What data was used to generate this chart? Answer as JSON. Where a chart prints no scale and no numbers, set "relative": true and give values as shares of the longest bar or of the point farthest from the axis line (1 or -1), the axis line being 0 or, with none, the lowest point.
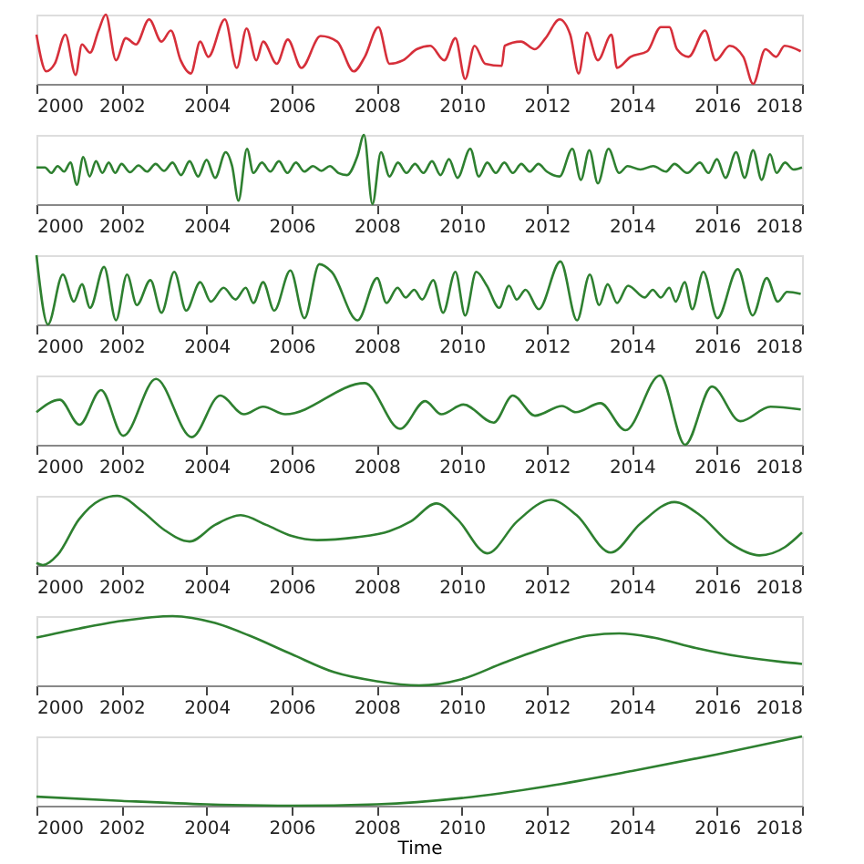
{
  "chart_data": [
    {
      "type": "line",
      "relative": true,
      "xlim": [
        2000,
        2018
      ],
      "xticks": [
        2000,
        2002,
        2004,
        2006,
        2008,
        2010,
        2012,
        2014,
        2016,
        2018
      ],
      "x": [
        2000.0,
        2000.23,
        2000.43,
        2000.68,
        2000.92,
        2001.07,
        2001.26,
        2001.46,
        2001.63,
        2001.87,
        2002.1,
        2002.34,
        2002.65,
        2002.94,
        2003.16,
        2003.39,
        2003.63,
        2003.85,
        2004.04,
        2004.43,
        2004.71,
        2004.94,
        2005.17,
        2005.33,
        2005.65,
        2005.91,
        2006.23,
        2006.68,
        2007.07,
        2007.46,
        2007.72,
        2008.04,
        2008.3,
        2008.62,
        2008.94,
        2009.26,
        2009.59,
        2009.85,
        2010.08,
        2010.3,
        2010.55,
        2010.94,
        2011.01,
        2011.39,
        2011.72,
        2011.97,
        2012.3,
        2012.55,
        2012.75,
        2012.94,
        2013.2,
        2013.52,
        2013.65,
        2013.97,
        2014.36,
        2014.68,
        2014.88,
        2015.06,
        2015.33,
        2015.72,
        2015.97,
        2016.3,
        2016.62,
        2016.85,
        2017.14,
        2017.39,
        2017.59,
        2017.97
      ],
      "series": [
        {
          "color": "#d62f3a",
          "values": [
            0.71,
            0.18,
            0.29,
            0.71,
            0.13,
            0.57,
            0.45,
            0.77,
            1.0,
            0.34,
            0.66,
            0.57,
            0.93,
            0.61,
            0.77,
            0.34,
            0.15,
            0.61,
            0.39,
            0.93,
            0.23,
            0.8,
            0.34,
            0.61,
            0.29,
            0.64,
            0.23,
            0.69,
            0.61,
            0.18,
            0.39,
            0.82,
            0.29,
            0.34,
            0.5,
            0.55,
            0.34,
            0.66,
            0.07,
            0.55,
            0.29,
            0.26,
            0.55,
            0.61,
            0.5,
            0.66,
            0.93,
            0.71,
            0.15,
            0.74,
            0.34,
            0.71,
            0.23,
            0.39,
            0.47,
            0.82,
            0.82,
            0.5,
            0.39,
            0.77,
            0.34,
            0.55,
            0.39,
            0.0,
            0.5,
            0.39,
            0.55,
            0.47
          ]
        }
      ]
    },
    {
      "type": "line",
      "relative": true,
      "xlim": [
        2000,
        2018
      ],
      "xticks": [
        2000,
        2002,
        2004,
        2006,
        2008,
        2010,
        2012,
        2014,
        2016,
        2018
      ],
      "x": [
        2000.0,
        2000.2,
        2000.35,
        2000.5,
        2000.65,
        2000.8,
        2000.95,
        2001.1,
        2001.25,
        2001.4,
        2001.55,
        2001.7,
        2001.85,
        2002.0,
        2002.2,
        2002.4,
        2002.6,
        2002.8,
        2003.0,
        2003.2,
        2003.4,
        2003.6,
        2003.8,
        2004.0,
        2004.2,
        2004.45,
        2004.6,
        2004.75,
        2004.95,
        2005.1,
        2005.3,
        2005.5,
        2005.7,
        2005.9,
        2006.1,
        2006.3,
        2006.5,
        2006.7,
        2006.9,
        2007.1,
        2007.3,
        2007.55,
        2007.7,
        2007.9,
        2008.1,
        2008.3,
        2008.5,
        2008.7,
        2008.9,
        2009.1,
        2009.3,
        2009.5,
        2009.7,
        2009.9,
        2010.2,
        2010.4,
        2010.6,
        2010.8,
        2011.0,
        2011.2,
        2011.4,
        2011.6,
        2011.8,
        2012.0,
        2012.3,
        2012.6,
        2012.8,
        2013.0,
        2013.2,
        2013.45,
        2013.7,
        2013.9,
        2014.2,
        2014.5,
        2014.8,
        2015.0,
        2015.3,
        2015.6,
        2015.8,
        2016.0,
        2016.2,
        2016.45,
        2016.65,
        2016.85,
        2017.05,
        2017.25,
        2017.4,
        2017.6,
        2017.8,
        2018.0
      ],
      "series": [
        {
          "color": "#2e8030",
          "values": [
            0.53,
            0.53,
            0.45,
            0.55,
            0.47,
            0.6,
            0.28,
            0.68,
            0.4,
            0.62,
            0.45,
            0.6,
            0.45,
            0.58,
            0.46,
            0.56,
            0.47,
            0.58,
            0.48,
            0.6,
            0.42,
            0.62,
            0.4,
            0.64,
            0.38,
            0.75,
            0.55,
            0.05,
            0.8,
            0.45,
            0.6,
            0.47,
            0.62,
            0.45,
            0.6,
            0.47,
            0.55,
            0.48,
            0.55,
            0.45,
            0.42,
            0.7,
            1.0,
            0.0,
            0.75,
            0.4,
            0.6,
            0.45,
            0.58,
            0.45,
            0.62,
            0.42,
            0.65,
            0.38,
            0.8,
            0.4,
            0.6,
            0.45,
            0.6,
            0.45,
            0.58,
            0.47,
            0.58,
            0.47,
            0.4,
            0.8,
            0.35,
            0.78,
            0.3,
            0.8,
            0.45,
            0.55,
            0.5,
            0.55,
            0.47,
            0.58,
            0.45,
            0.6,
            0.45,
            0.65,
            0.38,
            0.75,
            0.38,
            0.78,
            0.35,
            0.72,
            0.45,
            0.6,
            0.5,
            0.53
          ]
        }
      ]
    },
    {
      "type": "line",
      "relative": true,
      "xlim": [
        2000,
        2018
      ],
      "xticks": [
        2000,
        2002,
        2004,
        2006,
        2008,
        2010,
        2012,
        2014,
        2016,
        2018
      ],
      "x": [
        2000.0,
        2000.27,
        2000.62,
        2000.88,
        2001.07,
        2001.26,
        2001.59,
        2001.87,
        2002.13,
        2002.36,
        2002.68,
        2002.94,
        2003.24,
        2003.52,
        2003.85,
        2004.1,
        2004.4,
        2004.68,
        2004.92,
        2005.1,
        2005.33,
        2005.59,
        2005.97,
        2006.3,
        2006.65,
        2006.94,
        2007.55,
        2008.01,
        2008.23,
        2008.49,
        2008.68,
        2008.88,
        2009.07,
        2009.33,
        2009.56,
        2009.85,
        2010.08,
        2010.34,
        2010.59,
        2010.88,
        2011.11,
        2011.29,
        2011.5,
        2011.81,
        2012.32,
        2012.71,
        2013.01,
        2013.23,
        2013.43,
        2013.65,
        2013.91,
        2014.3,
        2014.49,
        2014.68,
        2014.88,
        2015.03,
        2015.24,
        2015.42,
        2015.68,
        2016.01,
        2016.49,
        2016.84,
        2017.17,
        2017.43,
        2017.65,
        2017.97
      ],
      "series": [
        {
          "color": "#2e8030",
          "values": [
            1.0,
            0.0,
            0.72,
            0.33,
            0.58,
            0.24,
            0.83,
            0.06,
            0.72,
            0.28,
            0.64,
            0.17,
            0.76,
            0.2,
            0.61,
            0.33,
            0.53,
            0.36,
            0.53,
            0.31,
            0.61,
            0.2,
            0.78,
            0.09,
            0.87,
            0.76,
            0.06,
            0.67,
            0.31,
            0.53,
            0.39,
            0.5,
            0.36,
            0.64,
            0.17,
            0.76,
            0.13,
            0.76,
            0.56,
            0.24,
            0.56,
            0.36,
            0.5,
            0.22,
            0.91,
            0.06,
            0.72,
            0.28,
            0.58,
            0.31,
            0.56,
            0.39,
            0.5,
            0.39,
            0.53,
            0.33,
            0.61,
            0.22,
            0.76,
            0.09,
            0.8,
            0.13,
            0.67,
            0.33,
            0.47,
            0.44
          ]
        }
      ]
    },
    {
      "type": "line",
      "relative": true,
      "xlim": [
        2000,
        2018
      ],
      "xticks": [
        2000,
        2002,
        2004,
        2006,
        2008,
        2010,
        2012,
        2014,
        2016,
        2018
      ],
      "x": [
        2000.0,
        2000.55,
        2001.01,
        2001.52,
        2002.04,
        2002.81,
        2003.65,
        2004.32,
        2004.88,
        2005.33,
        2005.85,
        2007.72,
        2008.55,
        2009.14,
        2009.52,
        2010.04,
        2010.75,
        2011.2,
        2011.72,
        2012.36,
        2012.68,
        2013.26,
        2013.85,
        2014.66,
        2015.25,
        2015.88,
        2016.55,
        2017.26,
        2017.97
      ],
      "series": [
        {
          "color": "#2e8030",
          "values": [
            0.47,
            0.65,
            0.29,
            0.79,
            0.13,
            0.95,
            0.11,
            0.71,
            0.44,
            0.55,
            0.44,
            0.89,
            0.23,
            0.63,
            0.44,
            0.58,
            0.32,
            0.71,
            0.42,
            0.56,
            0.47,
            0.6,
            0.21,
            1.0,
            0.0,
            0.84,
            0.34,
            0.55,
            0.51
          ]
        }
      ]
    },
    {
      "type": "line",
      "relative": true,
      "xlim": [
        2000,
        2018
      ],
      "xticks": [
        2000,
        2002,
        2004,
        2006,
        2008,
        2010,
        2012,
        2014,
        2016,
        2018
      ],
      "x": [
        2000.0,
        2000.15,
        2000.5,
        2001.0,
        2001.5,
        2001.9,
        2002.5,
        2003.0,
        2003.6,
        2004.2,
        2004.8,
        2005.4,
        2006.0,
        2006.6,
        2007.5,
        2008.3,
        2008.8,
        2009.4,
        2009.9,
        2010.6,
        2011.3,
        2012.1,
        2012.7,
        2013.5,
        2014.2,
        2015.0,
        2015.6,
        2016.3,
        2017.0,
        2017.6,
        2018.0
      ],
      "series": [
        {
          "color": "#2e8030",
          "values": [
            0.03,
            0.0,
            0.15,
            0.66,
            0.94,
            1.0,
            0.77,
            0.51,
            0.34,
            0.58,
            0.72,
            0.58,
            0.42,
            0.36,
            0.4,
            0.49,
            0.63,
            0.89,
            0.66,
            0.17,
            0.63,
            0.94,
            0.72,
            0.18,
            0.6,
            0.91,
            0.72,
            0.32,
            0.14,
            0.26,
            0.47
          ]
        }
      ]
    },
    {
      "type": "line",
      "relative": true,
      "xlim": [
        2000,
        2018
      ],
      "xticks": [
        2000,
        2002,
        2004,
        2006,
        2008,
        2010,
        2012,
        2014,
        2016,
        2018
      ],
      "x": [
        2000,
        2001,
        2002,
        2003.2,
        2004.2,
        2005,
        2006,
        2007,
        2008,
        2009,
        2010,
        2011,
        2012,
        2013,
        2013.7,
        2014.5,
        2015.5,
        2016.5,
        2017.5,
        2018
      ],
      "series": [
        {
          "color": "#2e8030",
          "values": [
            0.69,
            0.82,
            0.93,
            1.0,
            0.9,
            0.72,
            0.45,
            0.19,
            0.06,
            0.0,
            0.09,
            0.33,
            0.55,
            0.72,
            0.75,
            0.69,
            0.54,
            0.42,
            0.34,
            0.31
          ]
        }
      ]
    },
    {
      "type": "line",
      "relative": true,
      "xlim": [
        2000,
        2018
      ],
      "xticks": [
        2000,
        2002,
        2004,
        2006,
        2008,
        2010,
        2012,
        2014,
        2016,
        2018
      ],
      "xlabel": "Time",
      "x": [
        2000,
        2002,
        2004,
        2006,
        2008,
        2010,
        2012,
        2014,
        2016,
        2018
      ],
      "series": [
        {
          "color": "#2e8030",
          "values": [
            0.13,
            0.07,
            0.02,
            0.0,
            0.02,
            0.11,
            0.28,
            0.5,
            0.74,
            1.0
          ]
        }
      ]
    }
  ]
}
